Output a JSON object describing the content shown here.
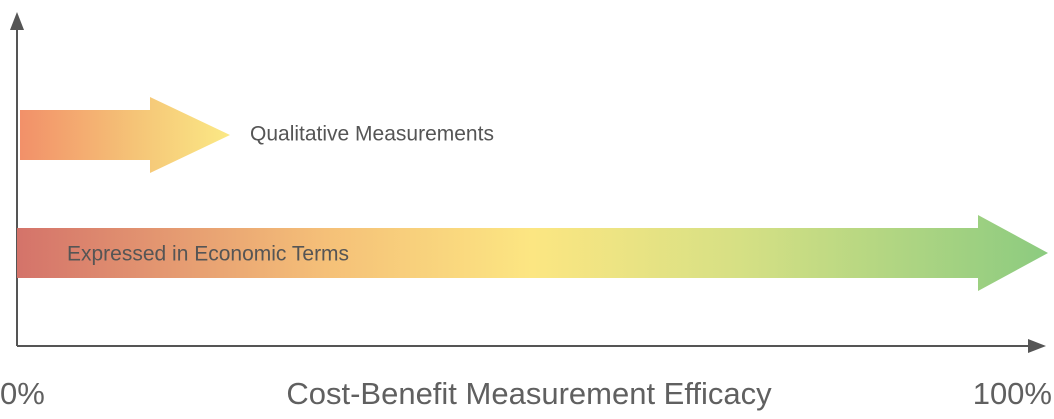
{
  "arrows": [
    {
      "label": "Qualitative Measurements"
    },
    {
      "label": "Expressed in Economic Terms"
    }
  ],
  "x_axis": {
    "start_label": "0%",
    "title": "Cost-Benefit Measurement Efficacy",
    "end_label": "100%"
  }
}
